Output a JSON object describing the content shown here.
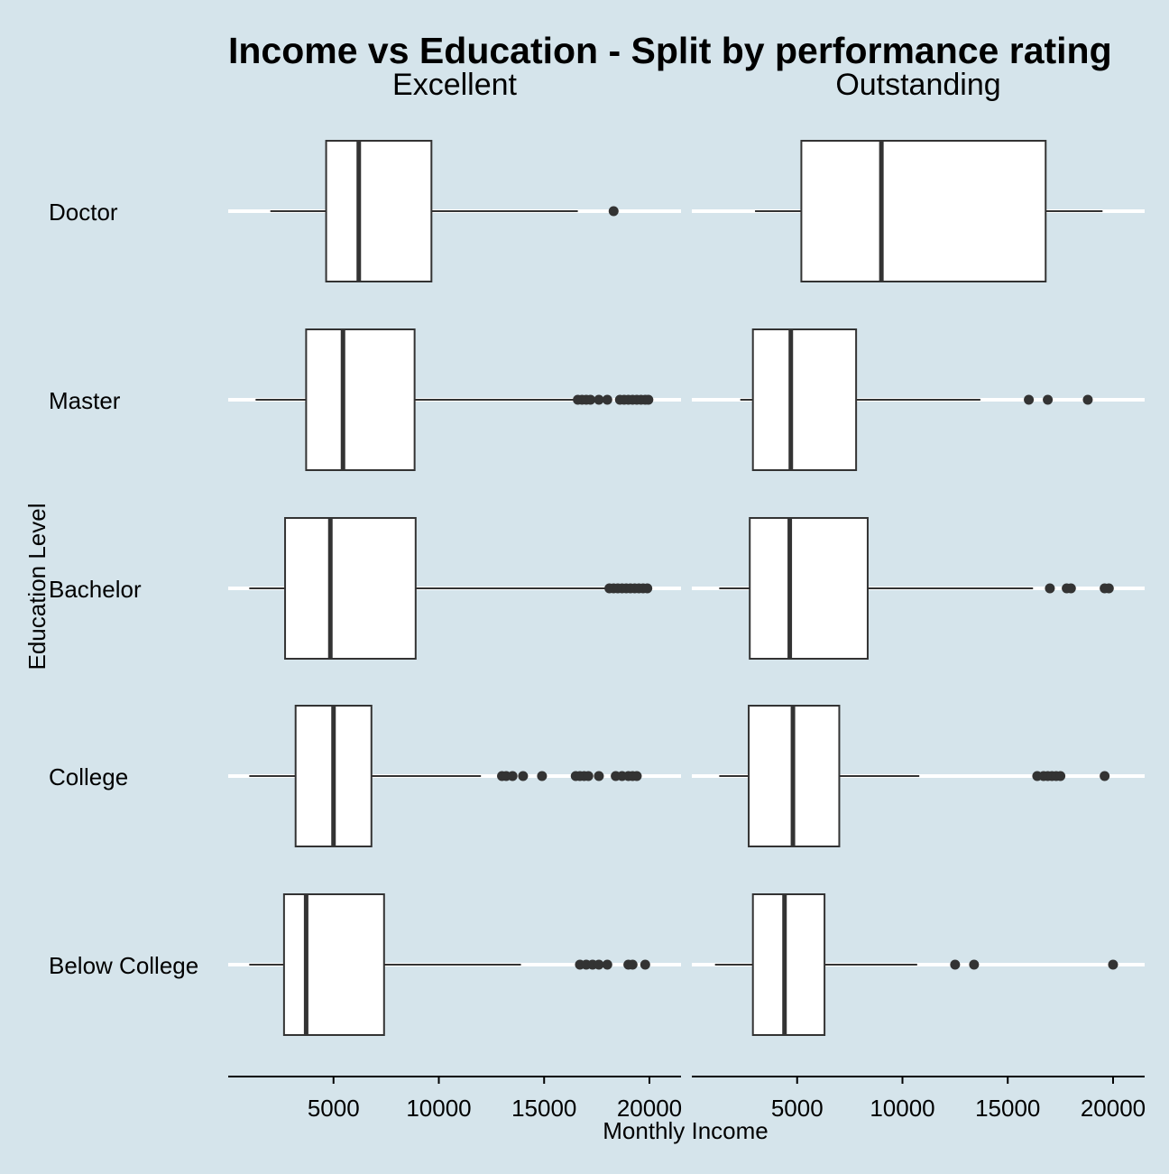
{
  "colors": {
    "background": "#d5e4eb",
    "box_fill": "#ffffff",
    "box_stroke": "#333333",
    "median": "#333333",
    "gridline": "#ffffff",
    "outlier": "#333333",
    "axis": "#000000"
  },
  "chart_data": {
    "type": "boxplot",
    "orientation": "horizontal",
    "title": "Income vs Education - Split by performance rating",
    "xlabel": "Monthly Income",
    "ylabel": "Education Level",
    "xlim": [
      0,
      21500
    ],
    "x_ticks": [
      5000,
      10000,
      15000,
      20000
    ],
    "x_tick_labels": [
      "5000",
      "10000",
      "15000",
      "20000"
    ],
    "categories": [
      "Doctor",
      "Master",
      "Bachelor",
      "College",
      "Below College"
    ],
    "grid": "horizontal major lines at categories",
    "legend": "none",
    "panels": [
      {
        "name": "Excellent",
        "boxes": [
          {
            "category": "Doctor",
            "whisker_low": 2000,
            "q1": 4650,
            "median": 6200,
            "q3": 9650,
            "whisker_high": 16600,
            "outliers": [
              18300
            ]
          },
          {
            "category": "Master",
            "whisker_low": 1300,
            "q1": 3700,
            "median": 5450,
            "q3": 8850,
            "whisker_high": 16500,
            "outliers": [
              16600,
              16800,
              17000,
              17200,
              17600,
              18000,
              18600,
              18800,
              19000,
              19200,
              19400,
              19600,
              19800,
              19950
            ]
          },
          {
            "category": "Bachelor",
            "whisker_low": 1000,
            "q1": 2700,
            "median": 4850,
            "q3": 8900,
            "whisker_high": 18000,
            "outliers": [
              18100,
              18300,
              18500,
              18700,
              18900,
              19100,
              19300,
              19500,
              19700,
              19900
            ]
          },
          {
            "category": "College",
            "whisker_low": 1000,
            "q1": 3200,
            "median": 5000,
            "q3": 6800,
            "whisker_high": 12000,
            "outliers": [
              13000,
              13200,
              13500,
              14000,
              14900,
              16500,
              16700,
              16900,
              17100,
              17600,
              18400,
              18700,
              19000,
              19200,
              19400
            ]
          },
          {
            "category": "Below College",
            "whisker_low": 1000,
            "q1": 2650,
            "median": 3700,
            "q3": 7400,
            "whisker_high": 13900,
            "outliers": [
              16700,
              17000,
              17300,
              17600,
              18000,
              19000,
              19200,
              19800
            ]
          }
        ]
      },
      {
        "name": "Outstanding",
        "boxes": [
          {
            "category": "Doctor",
            "whisker_low": 3000,
            "q1": 5200,
            "median": 9000,
            "q3": 16800,
            "whisker_high": 19500,
            "outliers": []
          },
          {
            "category": "Master",
            "whisker_low": 2300,
            "q1": 2900,
            "median": 4700,
            "q3": 7800,
            "whisker_high": 13700,
            "outliers": [
              16000,
              16900,
              18800
            ]
          },
          {
            "category": "Bachelor",
            "whisker_low": 1300,
            "q1": 2750,
            "median": 4650,
            "q3": 8350,
            "whisker_high": 16200,
            "outliers": [
              17000,
              17800,
              18000,
              19600,
              19800
            ]
          },
          {
            "category": "College",
            "whisker_low": 1300,
            "q1": 2700,
            "median": 4800,
            "q3": 7000,
            "whisker_high": 10800,
            "outliers": [
              16400,
              16700,
              16900,
              17100,
              17300,
              17500,
              19600
            ]
          },
          {
            "category": "Below College",
            "whisker_low": 1100,
            "q1": 2900,
            "median": 4400,
            "q3": 6300,
            "whisker_high": 10700,
            "outliers": [
              12500,
              13400,
              20000
            ]
          }
        ]
      }
    ]
  }
}
